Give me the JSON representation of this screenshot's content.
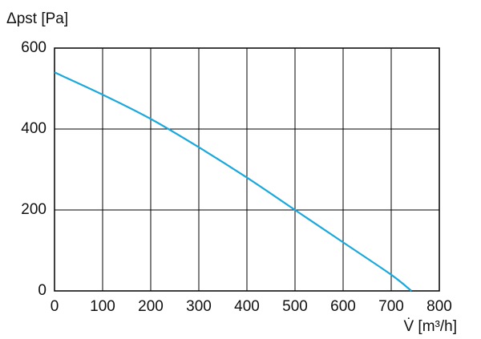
{
  "chart_data": {
    "type": "line",
    "y_label": "Δpst [Pa]",
    "x_label": "V̇ [m³/h]",
    "x": [
      0,
      100,
      200,
      300,
      400,
      500,
      600,
      700,
      742
    ],
    "series": [
      {
        "color": "#1ba8dc",
        "values": [
          540,
          485,
          425,
          355,
          280,
          200,
          120,
          40,
          0
        ]
      }
    ],
    "xlim": [
      0,
      800
    ],
    "xticks": [
      0,
      100,
      200,
      300,
      400,
      500,
      600,
      700,
      800
    ],
    "ylim": [
      0,
      600
    ],
    "yticks": [
      0,
      200,
      400,
      600
    ],
    "grid": true
  }
}
